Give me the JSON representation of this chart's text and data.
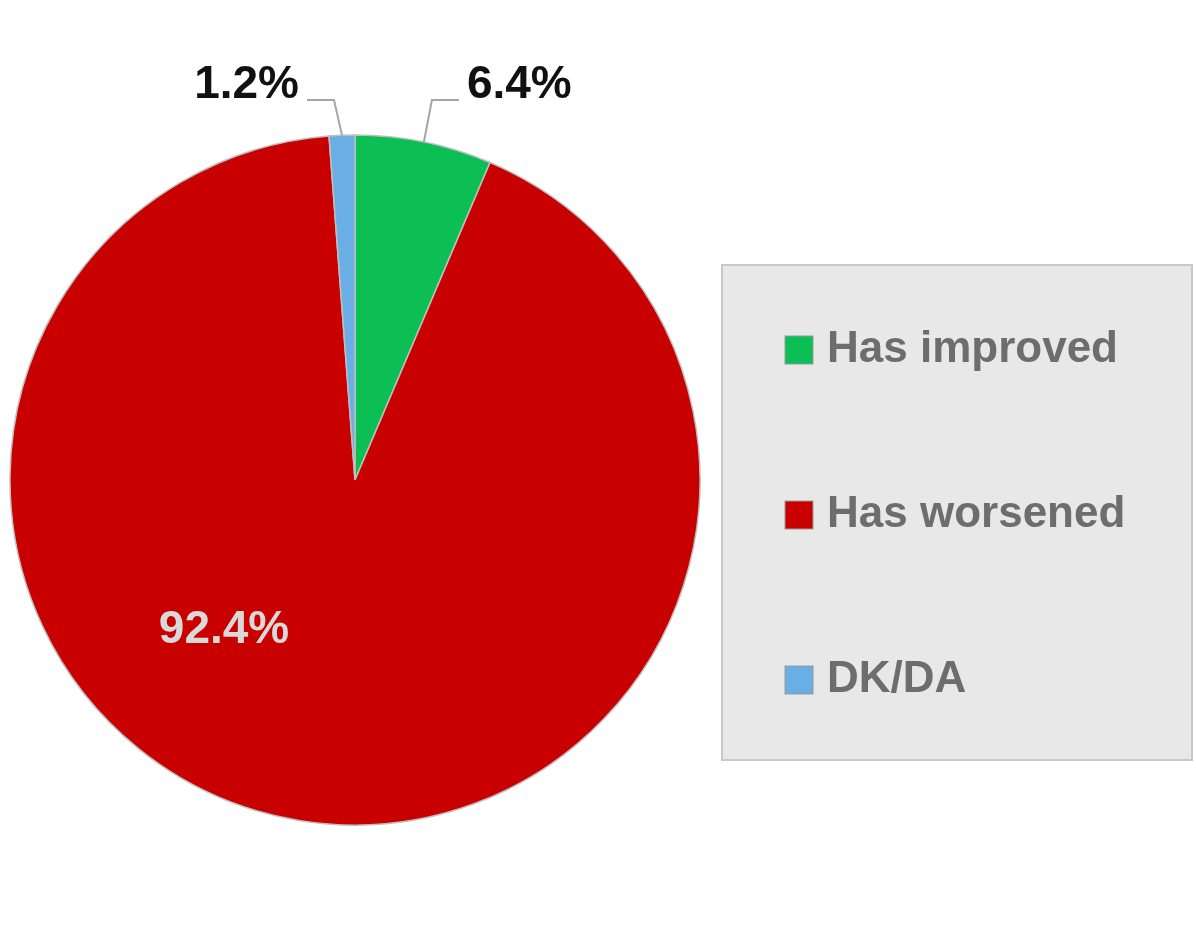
{
  "chart_data": {
    "type": "pie",
    "categories": [
      "Has improved",
      "Has worsened",
      "DK/DA"
    ],
    "values": [
      6.4,
      92.4,
      1.2
    ],
    "colors": [
      "#0bbf55",
      "#c80000",
      "#6aaee6"
    ],
    "value_labels": [
      "6.4%",
      "92.4%",
      "1.2%"
    ],
    "legend": "right"
  }
}
